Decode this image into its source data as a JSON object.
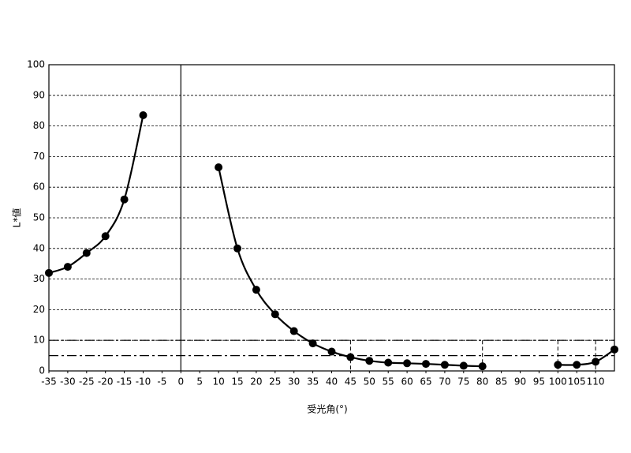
{
  "chart_data": {
    "type": "line",
    "x_label": "受光角(°)",
    "y_label": "L*値",
    "x": [
      -35,
      -30,
      -25,
      -20,
      -15,
      -10,
      0,
      10,
      15,
      20,
      25,
      30,
      35,
      40,
      45,
      50,
      55,
      60,
      65,
      70,
      75,
      80,
      90,
      100,
      105,
      110,
      115
    ],
    "series": [
      {
        "color": "#000000",
        "values": [
          32,
          34,
          38.5,
          44,
          56,
          83.5,
          null,
          66.5,
          40,
          26.5,
          18.5,
          13,
          9,
          6.3,
          4.5,
          3.3,
          2.7,
          2.5,
          2.3,
          2,
          1.7,
          1.5,
          null,
          2,
          2,
          3,
          7
        ]
      }
    ],
    "xlim": [
      -35,
      115
    ],
    "ylim": [
      0,
      100
    ],
    "xticks": [
      -35,
      -30,
      -25,
      -20,
      -15,
      -10,
      -5,
      0,
      5,
      10,
      15,
      20,
      25,
      30,
      35,
      40,
      45,
      50,
      55,
      60,
      65,
      70,
      75,
      80,
      85,
      90,
      95,
      100,
      105,
      110
    ],
    "yticks": [
      0,
      10,
      20,
      30,
      40,
      50,
      60,
      70,
      80,
      90,
      100
    ],
    "grid": true,
    "reference_hlines": [
      10,
      5
    ],
    "reference_vlines": [
      45,
      80,
      100,
      110
    ]
  }
}
